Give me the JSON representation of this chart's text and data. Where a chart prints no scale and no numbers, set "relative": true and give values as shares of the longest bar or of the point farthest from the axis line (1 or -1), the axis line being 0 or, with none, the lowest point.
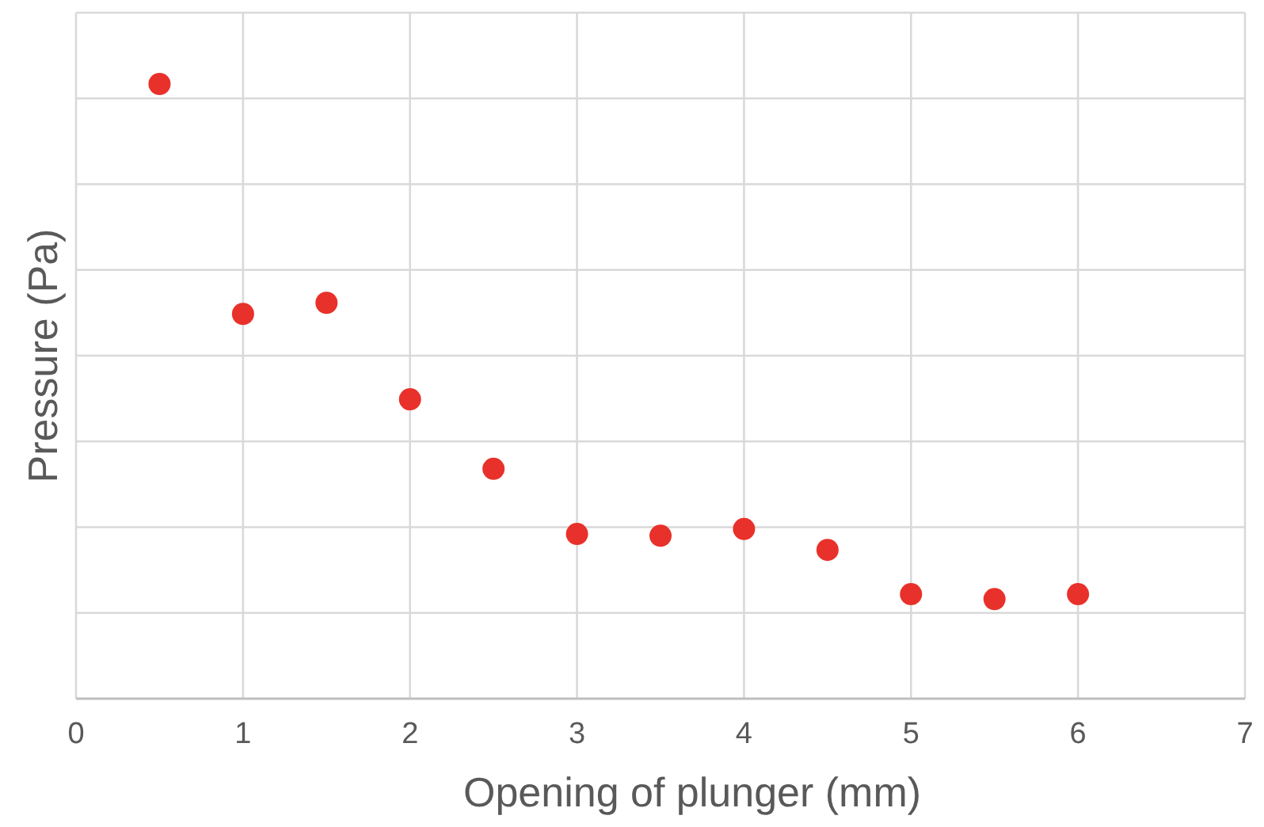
{
  "chart_data": {
    "type": "scatter",
    "xlabel": "Opening of plunger (mm)",
    "ylabel": "Pressure (Pa)",
    "relative": true,
    "xlim": [
      0,
      7
    ],
    "xticks": [
      0,
      1,
      2,
      3,
      4,
      5,
      6,
      7
    ],
    "grid": true,
    "marker": "circle",
    "x": [
      0.5,
      1,
      1.5,
      2,
      2.5,
      3,
      3.5,
      4,
      4.5,
      5,
      5.5,
      6
    ],
    "series": [
      {
        "color": "#e8312a",
        "values": [
          1,
          0.626,
          0.644,
          0.487,
          0.374,
          0.268,
          0.265,
          0.276,
          0.242,
          0.17,
          0.162,
          0.17
        ]
      }
    ]
  }
}
